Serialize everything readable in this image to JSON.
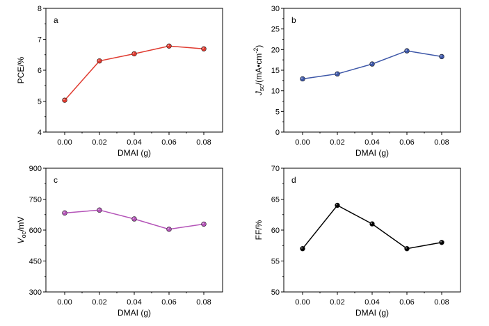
{
  "chart_data": [
    {
      "type": "line",
      "panel_label": "a",
      "x": [
        0.0,
        0.02,
        0.04,
        0.06,
        0.08
      ],
      "x_tick_labels": [
        "0.00",
        "0.02",
        "0.04",
        "0.06",
        "0.08"
      ],
      "xlabel": "DMAI (g)",
      "ylabel": "PCE/%",
      "ylim": [
        4,
        8
      ],
      "y_ticks": [
        4,
        5,
        6,
        7,
        8
      ],
      "y_tick_labels": [
        "4",
        "5",
        "6",
        "7",
        "8"
      ],
      "grid": false,
      "series": [
        {
          "values": [
            5.03,
            6.3,
            6.53,
            6.78,
            6.69
          ],
          "color": "#e03b30"
        }
      ]
    },
    {
      "type": "line",
      "panel_label": "b",
      "x": [
        0.0,
        0.02,
        0.04,
        0.06,
        0.08
      ],
      "x_tick_labels": [
        "0.00",
        "0.02",
        "0.04",
        "0.06",
        "0.08"
      ],
      "xlabel": "DMAI (g)",
      "ylabel": "Jsc/(mA•cm-2)",
      "ylim": [
        0,
        30
      ],
      "y_ticks": [
        0,
        5,
        10,
        15,
        20,
        25,
        30
      ],
      "y_tick_labels": [
        "0",
        "5",
        "10",
        "15",
        "20",
        "25",
        "30"
      ],
      "grid": false,
      "series": [
        {
          "values": [
            12.9,
            14.1,
            16.5,
            19.7,
            18.3
          ],
          "color": "#3d57a8"
        }
      ]
    },
    {
      "type": "line",
      "panel_label": "c",
      "x": [
        0.0,
        0.02,
        0.04,
        0.06,
        0.08
      ],
      "x_tick_labels": [
        "0.00",
        "0.02",
        "0.04",
        "0.06",
        "0.08"
      ],
      "xlabel": "DMAI (g)",
      "ylabel": "Voc/mV",
      "ylim": [
        300,
        900
      ],
      "y_ticks": [
        300,
        450,
        600,
        750,
        900
      ],
      "y_tick_labels": [
        "300",
        "450",
        "600",
        "750",
        "900"
      ],
      "grid": false,
      "series": [
        {
          "values": [
            683,
            697,
            654,
            604,
            629
          ],
          "color": "#b454b8"
        }
      ]
    },
    {
      "type": "line",
      "panel_label": "d",
      "x": [
        0.0,
        0.02,
        0.04,
        0.06,
        0.08
      ],
      "x_tick_labels": [
        "0.00",
        "0.02",
        "0.04",
        "0.06",
        "0.08"
      ],
      "xlabel": "DMAI (g)",
      "ylabel": "FF/%",
      "ylim": [
        50,
        70
      ],
      "y_ticks": [
        50,
        55,
        60,
        65,
        70
      ],
      "y_tick_labels": [
        "50",
        "55",
        "60",
        "65",
        "70"
      ],
      "grid": false,
      "series": [
        {
          "values": [
            57,
            64,
            61,
            57,
            58
          ],
          "color": "#000000"
        }
      ]
    }
  ]
}
